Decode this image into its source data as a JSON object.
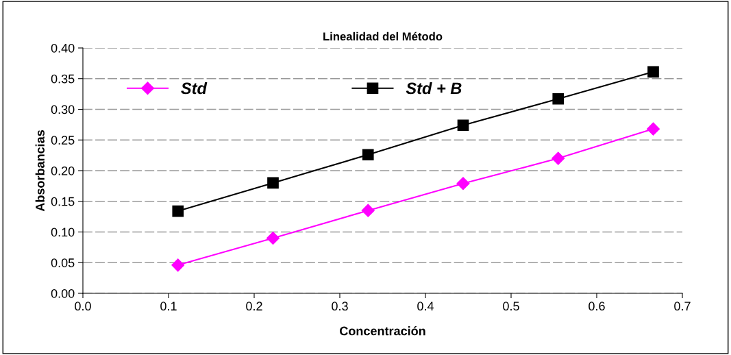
{
  "chart_data": {
    "type": "line",
    "title": "Linealidad del Método",
    "xlabel": "Concentración",
    "ylabel": "Absorbancias",
    "x": [
      0.111,
      0.222,
      0.333,
      0.444,
      0.555,
      0.666
    ],
    "series": [
      {
        "name": "Std",
        "color": "#ff00ff",
        "marker": "diamond",
        "values": [
          0.046,
          0.09,
          0.135,
          0.179,
          0.22,
          0.268
        ]
      },
      {
        "name": "Std + B",
        "color": "#000000",
        "marker": "square",
        "values": [
          0.134,
          0.18,
          0.226,
          0.274,
          0.317,
          0.361
        ]
      }
    ],
    "xlim": [
      0,
      0.7
    ],
    "xticks": [
      {
        "value": 0,
        "label": "0.0"
      },
      0.1,
      0.2,
      0.3,
      0.4,
      0.5,
      0.6,
      0.7
    ],
    "ylim": [
      0,
      0.4
    ],
    "yticks": [
      {
        "value": 0,
        "label": "0.00"
      },
      0.05,
      {
        "value": 0.1,
        "label": "0.10"
      },
      0.15,
      {
        "value": 0.2,
        "label": "0.20"
      },
      0.25,
      {
        "value": 0.3,
        "label": "0.30"
      },
      0.35,
      {
        "value": 0.4,
        "label": "0.40"
      }
    ],
    "grid": "y",
    "legend": "top",
    "line_style": "solid"
  }
}
